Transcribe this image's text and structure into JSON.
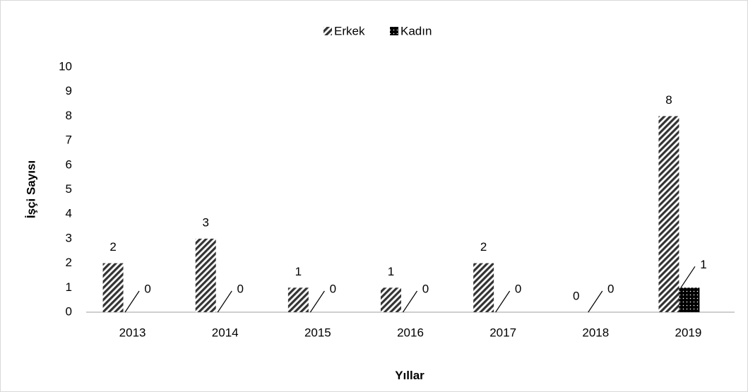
{
  "chart_data": {
    "type": "bar",
    "categories": [
      "2013",
      "2014",
      "2015",
      "2016",
      "2017",
      "2018",
      "2019"
    ],
    "series": [
      {
        "name": "Erkek",
        "color": "#333333",
        "values": [
          2,
          3,
          1,
          1,
          2,
          0,
          8
        ]
      },
      {
        "name": "Kadın",
        "color": "#000000",
        "values": [
          0,
          0,
          0,
          0,
          0,
          0,
          1
        ]
      }
    ],
    "xlabel": "Yıllar",
    "ylabel": "İşçi Sayısı",
    "ylim": [
      0,
      10
    ],
    "yticks": [
      0,
      1,
      2,
      3,
      4,
      5,
      6,
      7,
      8,
      9,
      10
    ],
    "legend": "top"
  }
}
